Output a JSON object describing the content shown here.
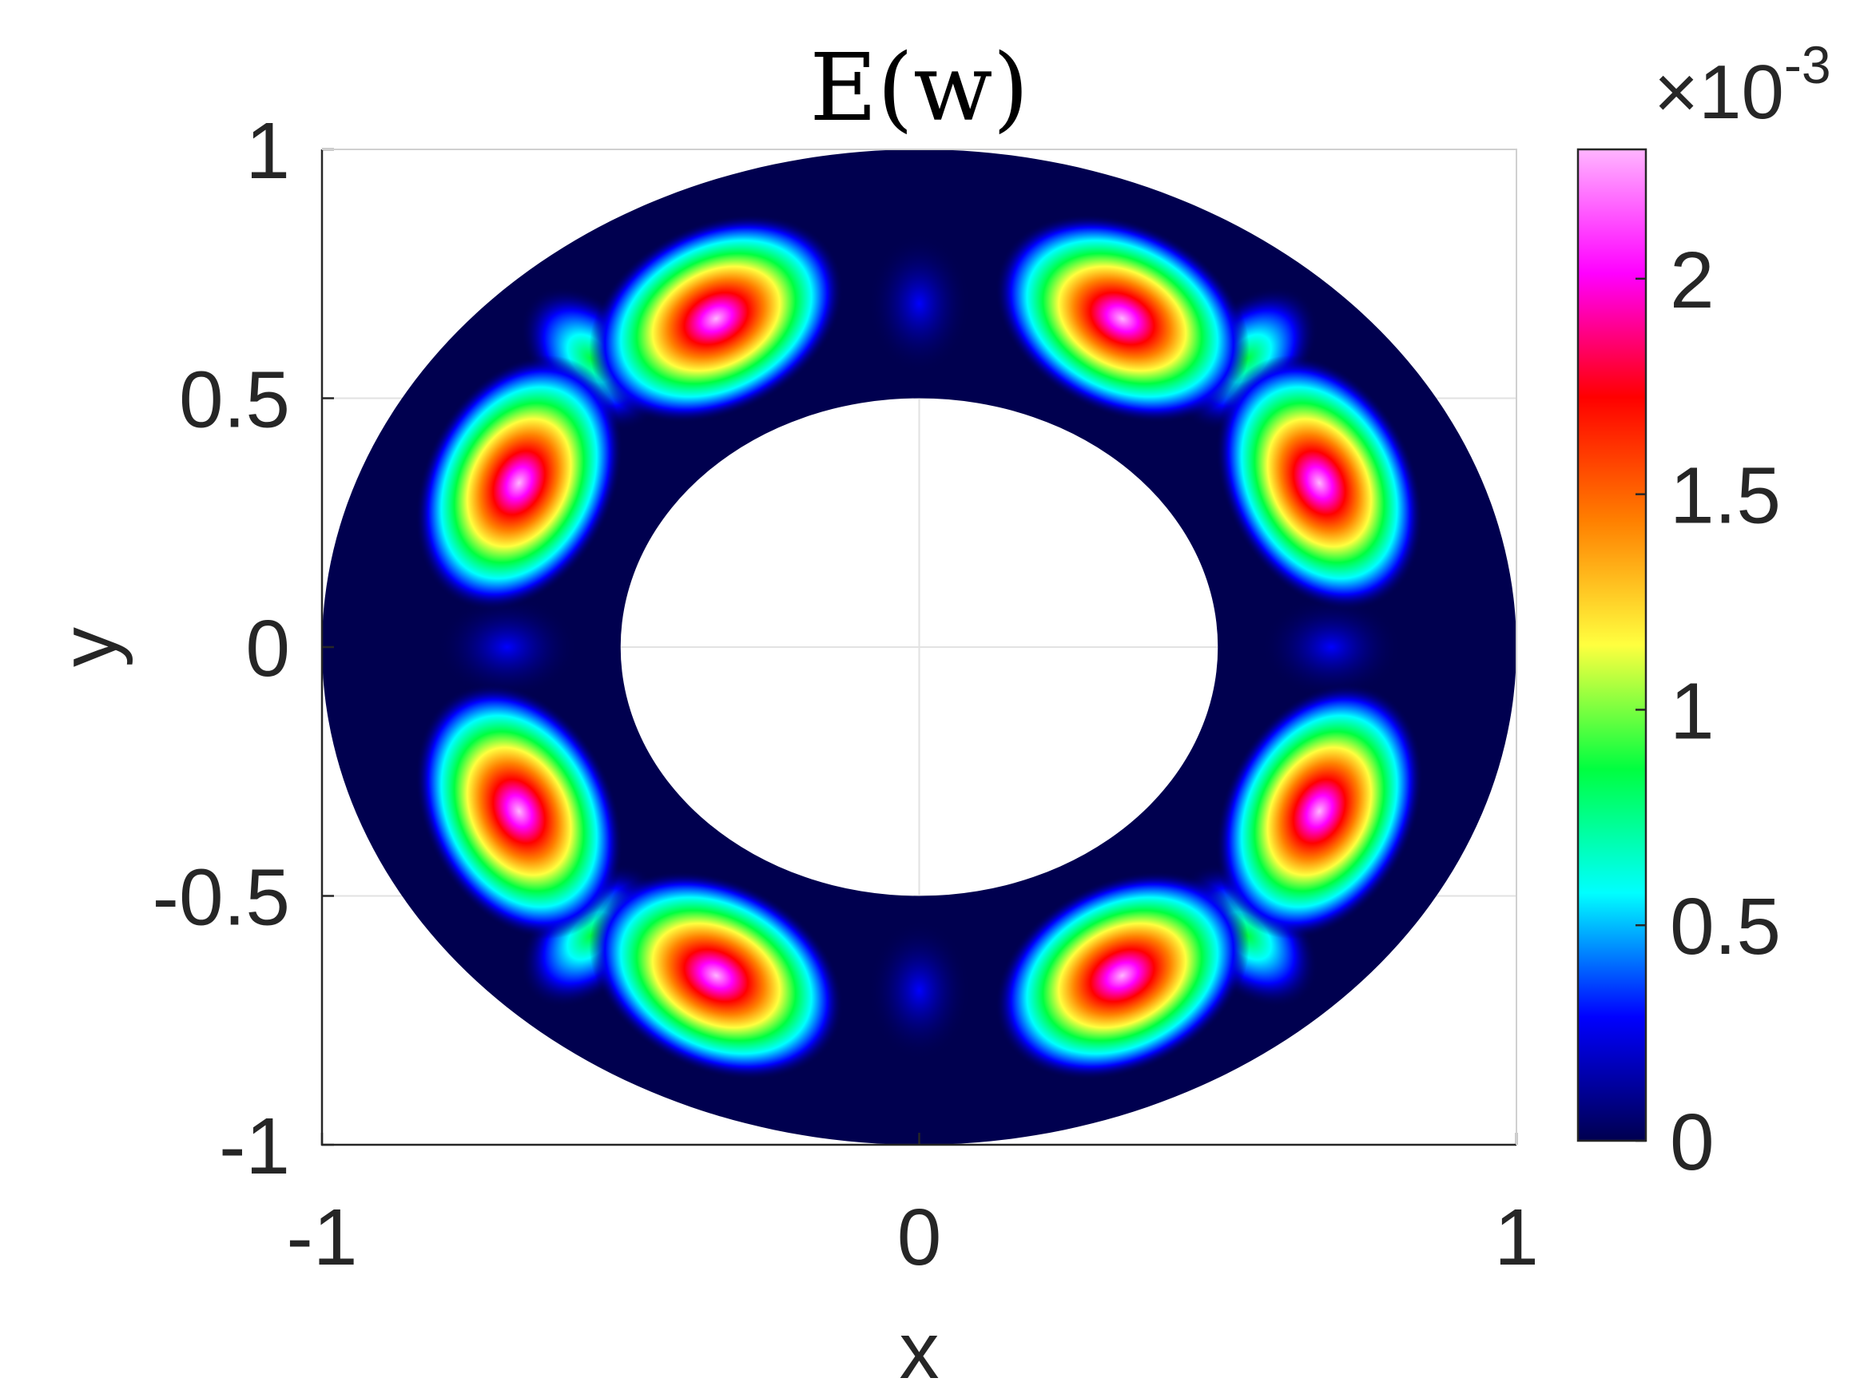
{
  "chart_data": {
    "type": "heatmap",
    "title": "E(w)",
    "xlabel": "x",
    "ylabel": "y",
    "xlim": [
      -1,
      1
    ],
    "ylim": [
      -1,
      1
    ],
    "x_ticks": [
      "-1",
      "0",
      "1"
    ],
    "x_tick_values": [
      -1,
      0,
      1
    ],
    "y_ticks": [
      "-1",
      "-0.5",
      "0",
      "0.5",
      "1"
    ],
    "y_tick_values": [
      -1,
      -0.5,
      0,
      0.5,
      1
    ],
    "grid": true,
    "domain": {
      "shape": "annulus",
      "inner_radius": 0.5,
      "outer_radius": 1.0
    },
    "colorbar": {
      "range": [
        0,
        0.0023
      ],
      "ticks": [
        "0",
        "0.5",
        "1",
        "1.5",
        "2"
      ],
      "tick_values": [
        0,
        0.0005,
        0.001,
        0.0015,
        0.002
      ],
      "exponent_base": "×10",
      "exponent_power": "-3",
      "colormap": [
        "#00004f",
        "#0000ff",
        "#00ffff",
        "#00ff40",
        "#ffff3f",
        "#ff8000",
        "#ff0000",
        "#ff00ff",
        "#ffb5ff"
      ]
    },
    "peaks": [
      {
        "x": -0.34,
        "y": 0.66,
        "value": 0.0023
      },
      {
        "x": 0.34,
        "y": 0.66,
        "value": 0.0023
      },
      {
        "x": -0.67,
        "y": 0.33,
        "value": 0.0023
      },
      {
        "x": 0.67,
        "y": 0.33,
        "value": 0.0023
      },
      {
        "x": -0.67,
        "y": -0.33,
        "value": 0.0023
      },
      {
        "x": 0.67,
        "y": -0.33,
        "value": 0.0023
      },
      {
        "x": -0.34,
        "y": -0.66,
        "value": 0.0023
      },
      {
        "x": 0.34,
        "y": -0.66,
        "value": 0.0023
      }
    ],
    "secondary_lobes": [
      {
        "x": -0.55,
        "y": 0.58,
        "value": 0.0009
      },
      {
        "x": 0.55,
        "y": 0.58,
        "value": 0.0009
      },
      {
        "x": -0.55,
        "y": -0.58,
        "value": 0.0009
      },
      {
        "x": 0.55,
        "y": -0.58,
        "value": 0.0009
      }
    ],
    "minor_lobes": [
      {
        "x": 0.0,
        "y": 0.69,
        "value": 0.0004
      },
      {
        "x": 0.0,
        "y": -0.69,
        "value": 0.0004
      },
      {
        "x": -0.69,
        "y": 0.0,
        "value": 0.00035
      },
      {
        "x": 0.69,
        "y": 0.0,
        "value": 0.00035
      }
    ]
  }
}
